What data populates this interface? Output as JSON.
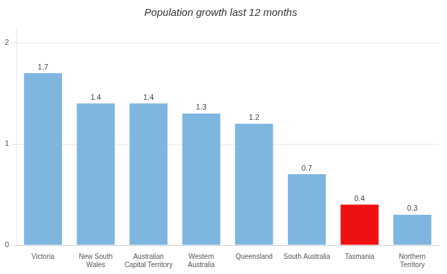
{
  "chart_data": {
    "type": "bar",
    "title": "Population growth last 12 months",
    "categories": [
      "Victoria",
      "New South\nWales",
      "Australian\nCapital Territory",
      "Western\nAustralia",
      "Queensland",
      "South Australia",
      "Tasmania",
      "Northern\nTerritory"
    ],
    "values": [
      1.7,
      1.4,
      1.4,
      1.3,
      1.2,
      0.7,
      0.4,
      0.3
    ],
    "colors": [
      "#7EB6E0",
      "#7EB6E0",
      "#7EB6E0",
      "#7EB6E0",
      "#7EB6E0",
      "#7EB6E0",
      "#EE1111",
      "#7EB6E0"
    ],
    "ylim": [
      0,
      2.15
    ],
    "yticks": [
      0,
      1,
      2
    ],
    "grid": true,
    "data_labels": true
  }
}
